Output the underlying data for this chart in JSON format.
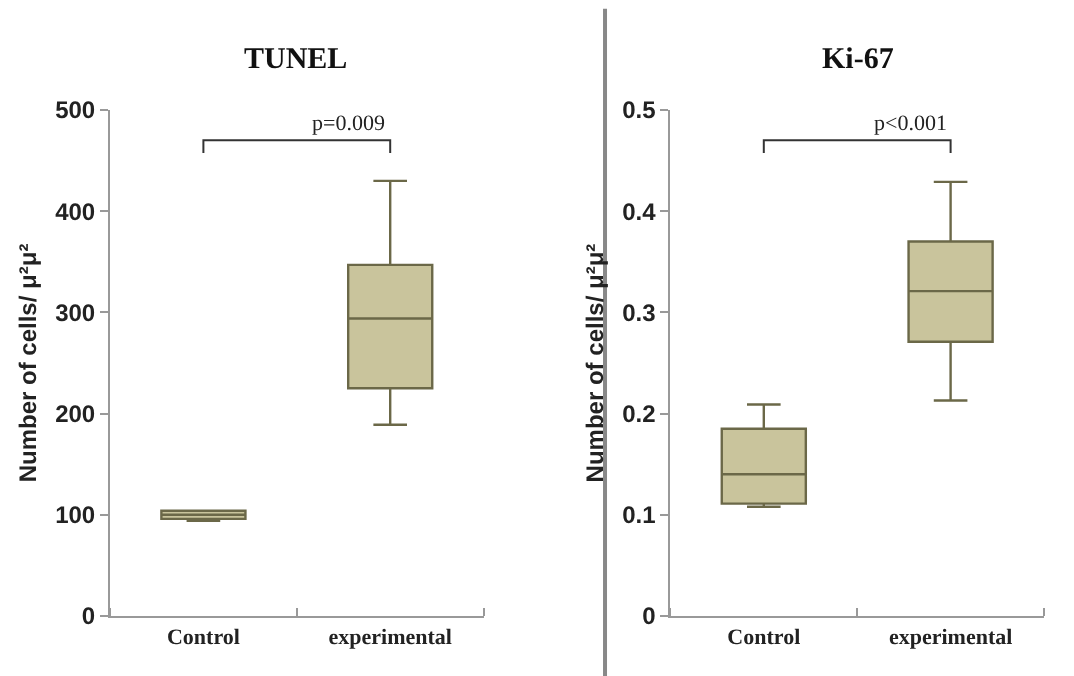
{
  "chart_data": [
    {
      "type": "box",
      "title": "TUNEL",
      "ylabel": "Number of cells/ μ²μ²",
      "categories": [
        "Control",
        "experimental"
      ],
      "color": "#c9c49c",
      "boxes": [
        {
          "low": 94,
          "q1": 96,
          "median": 100,
          "q3": 104,
          "high": 104
        },
        {
          "low": 189,
          "q1": 225,
          "median": 294,
          "q3": 347,
          "high": 430
        }
      ],
      "ylim": [
        0,
        500
      ],
      "yticks": [
        0,
        100,
        200,
        300,
        400,
        500
      ],
      "annotations": [
        "p=0.009"
      ]
    },
    {
      "type": "box",
      "title": "Ki-67",
      "ylabel": "Number of cells/ μ²μ²",
      "categories": [
        "Control",
        "experimental"
      ],
      "color": "#c9c49c",
      "boxes": [
        {
          "low": 0.108,
          "q1": 0.111,
          "median": 0.14,
          "q3": 0.185,
          "high": 0.209
        },
        {
          "low": 0.213,
          "q1": 0.271,
          "median": 0.321,
          "q3": 0.37,
          "high": 0.429
        }
      ],
      "ylim": [
        0,
        0.5
      ],
      "yticks": [
        0,
        0.1,
        0.2,
        0.3,
        0.4,
        0.5
      ],
      "annotations": [
        "p<0.001"
      ]
    }
  ]
}
